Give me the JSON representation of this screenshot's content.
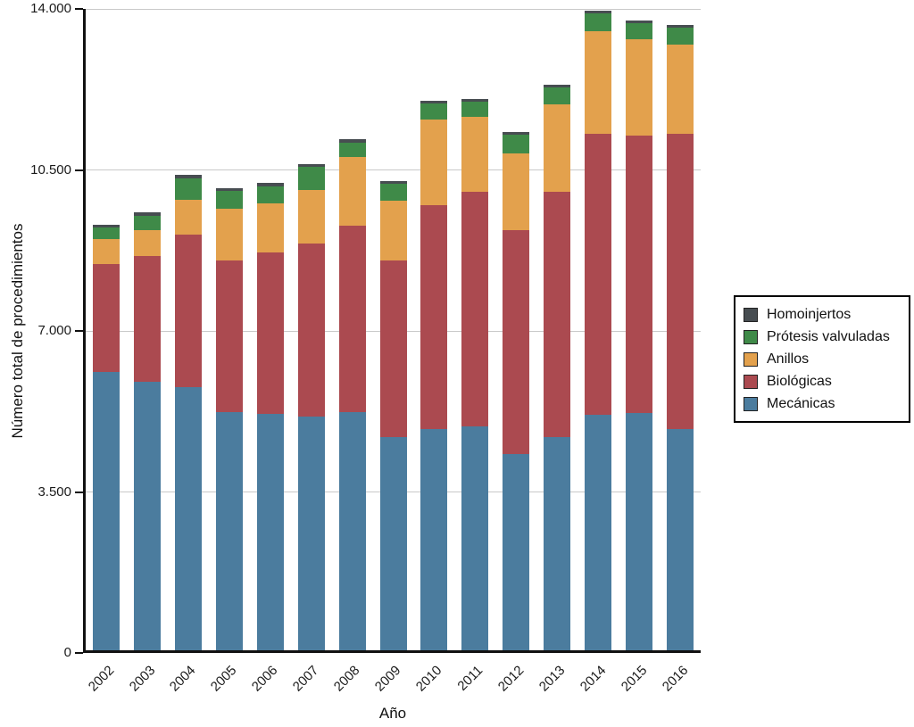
{
  "chart_data": {
    "type": "bar",
    "stacked": true,
    "xlabel": "Año",
    "ylabel": "Número total de procedimientos",
    "ylim": [
      0,
      14000
    ],
    "yticks": [
      0,
      3500,
      7000,
      10500,
      14000
    ],
    "ytick_labels": [
      "0",
      "3.500",
      "7.000",
      "10.500",
      "14.000"
    ],
    "grid": "horizontal",
    "categories": [
      "2002",
      "2003",
      "2004",
      "2005",
      "2006",
      "2007",
      "2008",
      "2009",
      "2010",
      "2011",
      "2012",
      "2013",
      "2014",
      "2015",
      "2016"
    ],
    "series": [
      {
        "name": "Mecánicas",
        "color": "#4b7c9e",
        "values": [
          6100,
          5900,
          5780,
          5240,
          5200,
          5140,
          5240,
          4690,
          4870,
          4925,
          4330,
          4690,
          5175,
          5215,
          4870
        ]
      },
      {
        "name": "Biológicas",
        "color": "#ab4a50",
        "values": [
          2350,
          2730,
          3320,
          3290,
          3500,
          3760,
          4050,
          3840,
          4865,
          5100,
          4860,
          5335,
          6110,
          6030,
          6415
        ]
      },
      {
        "name": "Anillos",
        "color": "#e3a14d",
        "values": [
          550,
          560,
          755,
          1125,
          1065,
          1165,
          1490,
          1300,
          1860,
          1630,
          1670,
          1900,
          2230,
          2095,
          1940
        ]
      },
      {
        "name": "Prótesis valvuladas",
        "color": "#3f8a48",
        "values": [
          250,
          310,
          465,
          395,
          380,
          495,
          320,
          370,
          345,
          325,
          400,
          365,
          385,
          350,
          365
        ]
      },
      {
        "name": "Homoinjertos",
        "color": "#474d51",
        "values": [
          60,
          80,
          80,
          55,
          70,
          70,
          70,
          60,
          60,
          60,
          65,
          60,
          60,
          60,
          60
        ]
      }
    ],
    "legend": {
      "position": "right",
      "order": [
        "Homoinjertos",
        "Prótesis valvuladas",
        "Anillos",
        "Biológicas",
        "Mecánicas"
      ]
    }
  }
}
